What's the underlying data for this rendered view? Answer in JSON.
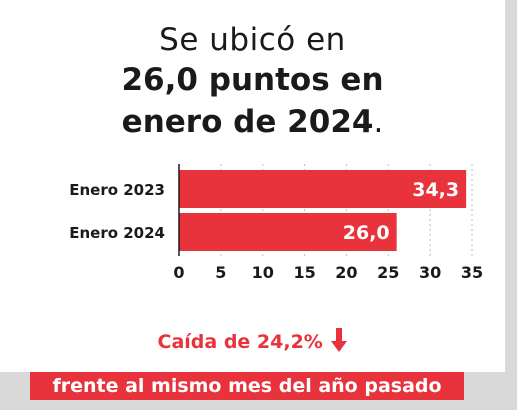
{
  "headline": {
    "line1": "Se ubicó en",
    "line2": "26,0 puntos en",
    "line3": "enero de 2024",
    "line3_end": "."
  },
  "chart_data": {
    "type": "bar",
    "orientation": "horizontal",
    "categories": [
      "Enero 2023",
      "Enero 2024"
    ],
    "values": [
      34.3,
      26.0
    ],
    "value_labels": [
      "34,3",
      "26,0"
    ],
    "xlim": [
      0,
      35
    ],
    "xticks": [
      0,
      5,
      10,
      15,
      20,
      25,
      30,
      35
    ],
    "grid": "vertical dotted",
    "bar_color": "#e8323c",
    "label_color": "#ffffff"
  },
  "caption": {
    "text": "Caída de 24,2%",
    "icon": "arrow-down-icon",
    "band_text": "frente al mismo mes del año pasado"
  },
  "colors": {
    "accent": "#e8323c",
    "text": "#1a1a1a",
    "background": "#ffffff",
    "frame": "#d9d9d9"
  }
}
